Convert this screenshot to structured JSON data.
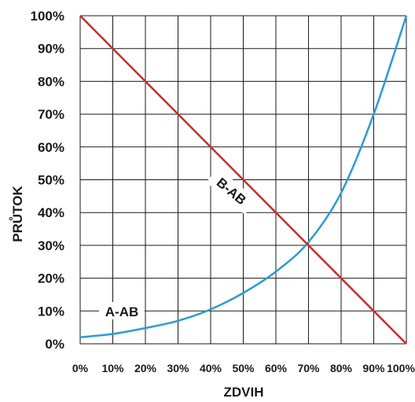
{
  "chart_data": {
    "type": "line",
    "xlabel": "ZDVIH",
    "ylabel": "PRŮTOK",
    "xlim": [
      0,
      100
    ],
    "ylim": [
      0,
      100
    ],
    "grid": true,
    "x_ticks": [
      "0%",
      "10%",
      "20%",
      "30%",
      "40%",
      "50%",
      "60%",
      "70%",
      "80%",
      "90%",
      "100%"
    ],
    "y_ticks": [
      "0%",
      "10%",
      "20%",
      "30%",
      "40%",
      "50%",
      "60%",
      "70%",
      "80%",
      "90%",
      "100%"
    ],
    "series": [
      {
        "name": "A-AB",
        "color": "#2b9bd3",
        "x": [
          0,
          10,
          20,
          30,
          40,
          50,
          60,
          70,
          80,
          90,
          100
        ],
        "y": [
          2,
          3,
          4.8,
          7,
          10.5,
          15.5,
          22,
          31,
          46,
          70,
          100
        ]
      },
      {
        "name": "B-AB",
        "color": "#cc2a2a",
        "x": [
          0,
          100
        ],
        "y": [
          100,
          0
        ]
      }
    ]
  }
}
